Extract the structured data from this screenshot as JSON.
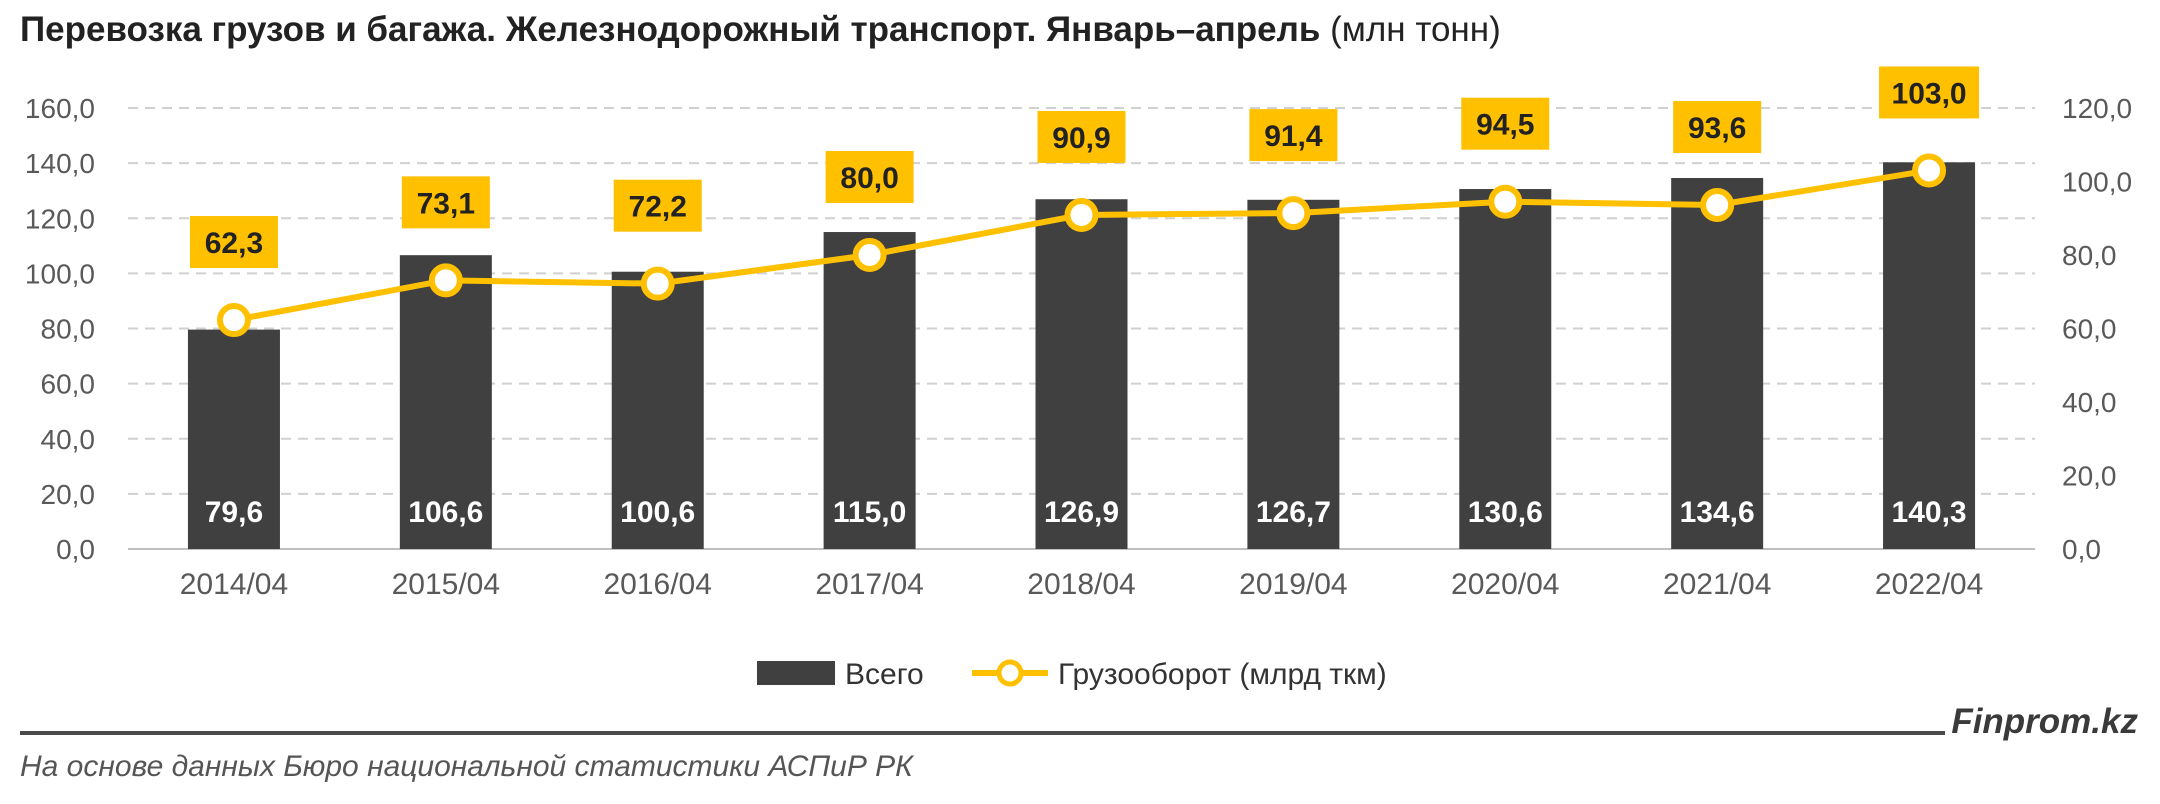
{
  "title": {
    "main": "Перевозка грузов и багажа. Железнодорожный транспорт. Январь–апрель",
    "unit": "(млн тонн)"
  },
  "brand": "Finprom.kz",
  "source": "На основе данных Бюро национальной статистики АСПиР РК",
  "colors": {
    "bar": "#404040",
    "line": "#FFC000",
    "grid": "#d0d0d0",
    "axis_text": "#595959"
  },
  "chart_data": {
    "type": "bar",
    "categories": [
      "2014/04",
      "2015/04",
      "2016/04",
      "2017/04",
      "2018/04",
      "2019/04",
      "2020/04",
      "2021/04",
      "2022/04"
    ],
    "series": [
      {
        "name": "Всего",
        "type": "bar",
        "axis": "left",
        "values": [
          79.6,
          106.6,
          100.6,
          115.0,
          126.9,
          126.7,
          130.6,
          134.6,
          140.3
        ],
        "labels": [
          "79,6",
          "106,6",
          "100,6",
          "115,0",
          "126,9",
          "126,7",
          "130,6",
          "134,6",
          "140,3"
        ]
      },
      {
        "name": "Грузооборот (млрд ткм)",
        "type": "line",
        "axis": "right",
        "values": [
          62.3,
          73.1,
          72.2,
          80.0,
          90.9,
          91.4,
          94.5,
          93.6,
          103.0
        ],
        "labels": [
          "62,3",
          "73,1",
          "72,2",
          "80,0",
          "90,9",
          "91,4",
          "94,5",
          "93,6",
          "103,0"
        ]
      }
    ],
    "y_left": {
      "min": 0,
      "max": 160,
      "step": 20,
      "ticks": [
        "0,0",
        "20,0",
        "40,0",
        "60,0",
        "80,0",
        "100,0",
        "120,0",
        "140,0",
        "160,0"
      ]
    },
    "y_right": {
      "min": 0,
      "max": 120,
      "step": 20,
      "ticks": [
        "0,0",
        "20,0",
        "40,0",
        "60,0",
        "80,0",
        "100,0",
        "120,0"
      ]
    },
    "grid": true,
    "legend_position": "bottom"
  }
}
